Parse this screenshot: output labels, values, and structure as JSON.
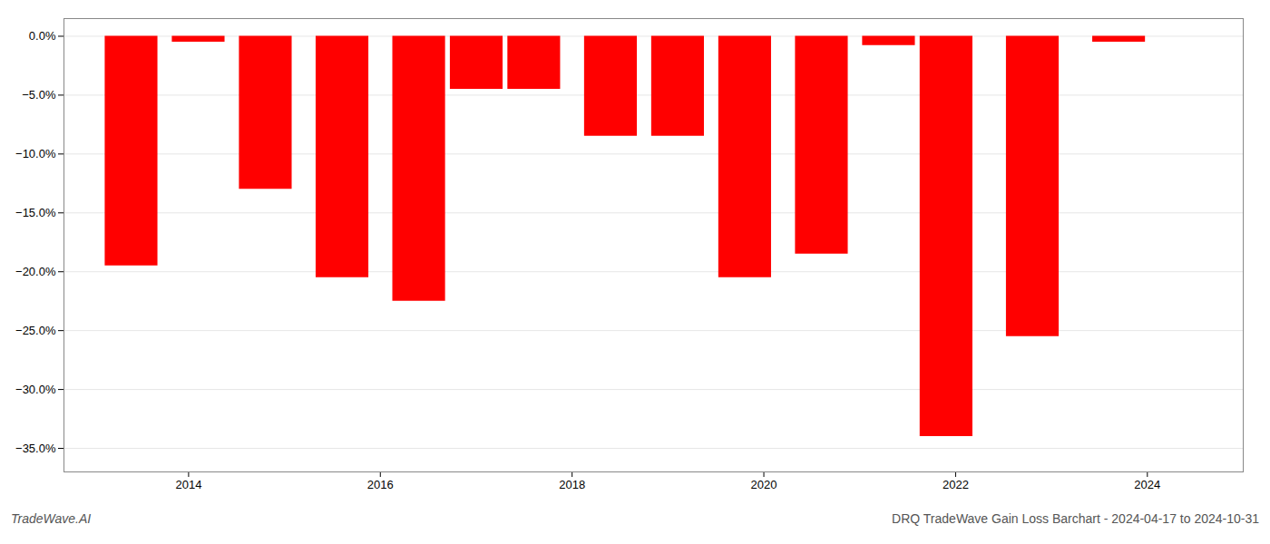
{
  "chart_data": {
    "type": "bar",
    "x": [
      2013.4,
      2014.1,
      2014.8,
      2015.6,
      2016.4,
      2017.0,
      2017.6,
      2018.4,
      2019.1,
      2019.8,
      2020.6,
      2021.3,
      2021.9,
      2022.8,
      2023.7
    ],
    "values": [
      -19.5,
      -0.5,
      -13.0,
      -20.5,
      -22.5,
      -4.5,
      -4.5,
      -8.5,
      -8.5,
      -20.5,
      -18.5,
      -0.8,
      -34.0,
      -25.5,
      -0.5
    ],
    "color": "#ff0000",
    "xlim": [
      2012.7,
      2025.0
    ],
    "xticks": [
      2014,
      2016,
      2018,
      2020,
      2022,
      2024
    ],
    "ylim": [
      -37.0,
      1.5
    ],
    "yticks": [
      {
        "value": 0.0,
        "label": "0.0%"
      },
      {
        "value": -5.0,
        "label": "−5.0%"
      },
      {
        "value": -10.0,
        "label": "−10.0%"
      },
      {
        "value": -15.0,
        "label": "−15.0%"
      },
      {
        "value": -20.0,
        "label": "−20.0%"
      },
      {
        "value": -25.0,
        "label": "−25.0%"
      },
      {
        "value": -30.0,
        "label": "−30.0%"
      },
      {
        "value": -35.0,
        "label": "−35.0%"
      }
    ],
    "grid": "y",
    "annotations": [
      "TradeWave.AI",
      "DRQ TradeWave Gain Loss Barchart - 2024-04-17 to 2024-10-31"
    ]
  }
}
